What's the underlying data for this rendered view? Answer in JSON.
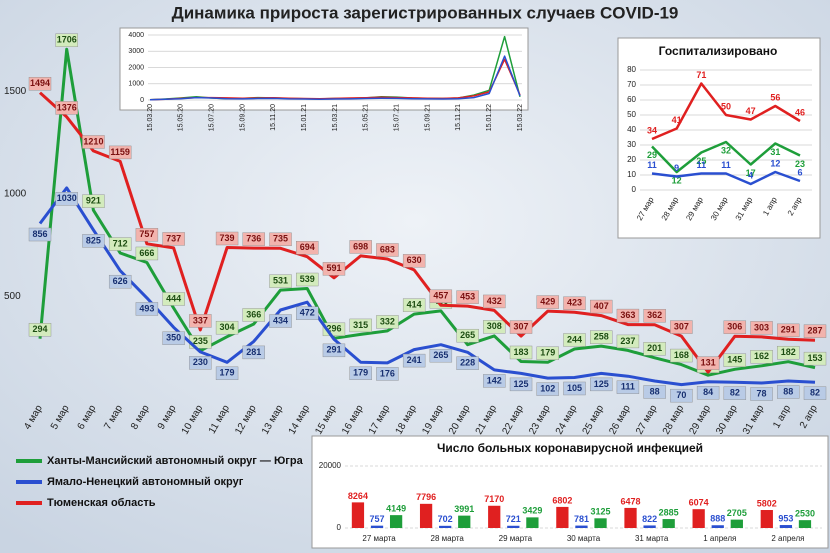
{
  "chart_data": [
    {
      "type": "line",
      "title": "Динамика прироста зарегистрированных случаев COVID-19",
      "categories": [
        "4 мар",
        "5 мар",
        "6 мар",
        "7 мар",
        "8 мар",
        "9 мар",
        "10 мар",
        "11 мар",
        "12 мар",
        "13 мар",
        "14 мар",
        "15 мар",
        "16 мар",
        "17 мар",
        "18 мар",
        "19 мар",
        "20 мар",
        "21 мар",
        "22 мар",
        "23 мар",
        "24 мар",
        "25 мар",
        "26 мар",
        "27 мар",
        "28 мар",
        "29 мар",
        "30 мар",
        "31 мар",
        "1 апр",
        "2 апр"
      ],
      "series": [
        {
          "name": "Ханты-Мансийский автономный округ — Югра",
          "color": "#1e9e3a",
          "values": [
            294,
            1706,
            921,
            712,
            666,
            444,
            235,
            304,
            366,
            531,
            539,
            296,
            315,
            332,
            414,
            430,
            265,
            308,
            183,
            179,
            244,
            258,
            237,
            201,
            168,
            116,
            145,
            162,
            182,
            153
          ]
        },
        {
          "name": "Ямало-Ненецкий автономный округ",
          "color": "#2a4fd0",
          "values": [
            856,
            1030,
            825,
            626,
            493,
            350,
            230,
            179,
            281,
            434,
            472,
            291,
            179,
            176,
            241,
            265,
            228,
            142,
            125,
            102,
            105,
            125,
            111,
            88,
            70,
            84,
            82,
            78,
            88,
            82
          ]
        },
        {
          "name": "Тюменская область",
          "color": "#e02020",
          "values": [
            1494,
            1376,
            1210,
            1159,
            757,
            737,
            337,
            739,
            736,
            735,
            694,
            591,
            698,
            683,
            630,
            457,
            453,
            432,
            307,
            429,
            423,
            407,
            363,
            362,
            307,
            131,
            306,
            303,
            291,
            287
          ]
        }
      ],
      "ylim": [
        0,
        1800
      ],
      "yticks": [
        500,
        1000,
        1500
      ],
      "grid": false
    },
    {
      "type": "line",
      "categories": [
        "15.03.20",
        null,
        "15.05.20",
        null,
        "15.07.20",
        null,
        "15.09.20",
        null,
        "15.11.20",
        null,
        "15.01.21",
        null,
        "15.03.21",
        null,
        "15.05.21",
        null,
        "15.07.21",
        null,
        "15.09.21",
        null,
        "15.11.21",
        null,
        "15.01.22",
        null,
        "15.03.22"
      ],
      "series": [
        {
          "color": "#1e9e3a",
          "values": [
            20,
            60,
            120,
            200,
            120,
            80,
            100,
            150,
            130,
            90,
            80,
            70,
            90,
            100,
            130,
            200,
            180,
            120,
            100,
            90,
            120,
            300,
            600,
            3900,
            200
          ]
        },
        {
          "color": "#e02020",
          "values": [
            10,
            50,
            100,
            150,
            150,
            130,
            110,
            120,
            140,
            110,
            90,
            80,
            100,
            120,
            140,
            170,
            150,
            130,
            110,
            100,
            130,
            250,
            500,
            2500,
            300
          ]
        },
        {
          "color": "#2a4fd0",
          "values": [
            10,
            40,
            80,
            150,
            120,
            80,
            70,
            90,
            100,
            70,
            60,
            50,
            60,
            70,
            90,
            110,
            100,
            80,
            70,
            60,
            80,
            150,
            400,
            2700,
            250
          ]
        }
      ],
      "ylim": [
        0,
        4000
      ],
      "yticks": [
        0,
        1000,
        2000,
        3000,
        4000
      ],
      "grid": true
    },
    {
      "type": "line",
      "title": "Госпитализировано",
      "categories": [
        "27 мар",
        "28 мар",
        "29 мар",
        "30 мар",
        "31 мар",
        "1 апр",
        "2 апр"
      ],
      "series": [
        {
          "color": "#e02020",
          "values": [
            34,
            41,
            71,
            50,
            47,
            56,
            46
          ]
        },
        {
          "color": "#1e9e3a",
          "values": [
            29,
            12,
            25,
            32,
            17,
            31,
            23
          ]
        },
        {
          "color": "#2a4fd0",
          "values": [
            11,
            9,
            11,
            11,
            4,
            12,
            6
          ]
        }
      ],
      "ylim": [
        0,
        80
      ],
      "yticks": [
        0,
        10,
        20,
        30,
        40,
        50,
        60,
        70,
        80
      ],
      "grid": true
    },
    {
      "type": "bar",
      "title": "Число больных коронавирусной  инфекцией",
      "categories": [
        "27 марта",
        "28 марта",
        "29 марта",
        "30 марта",
        "31 марта",
        "1 апреля",
        "2 апреля"
      ],
      "series": [
        {
          "color": "#e02020",
          "values": [
            8264,
            7796,
            7170,
            6802,
            6478,
            6074,
            5802
          ]
        },
        {
          "color": "#2a4fd0",
          "values": [
            757,
            702,
            721,
            781,
            822,
            888,
            953
          ]
        },
        {
          "color": "#1e9e3a",
          "values": [
            4149,
            3991,
            3429,
            3125,
            2885,
            2705,
            2530
          ]
        }
      ],
      "ylim": [
        0,
        20000
      ],
      "yticks": [
        0,
        20000
      ],
      "grid": true
    }
  ]
}
